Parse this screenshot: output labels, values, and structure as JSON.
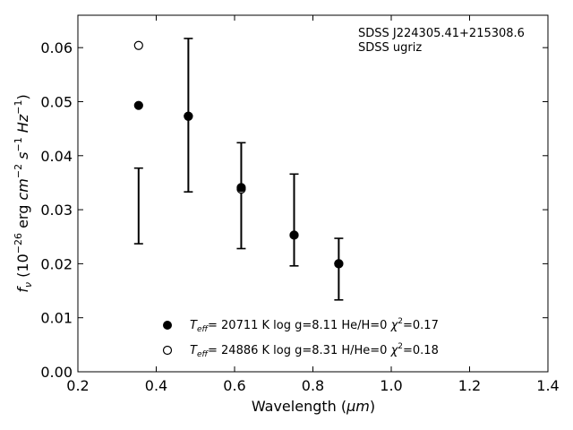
{
  "chart_data": {
    "type": "scatter",
    "xlabel_main": "Wavelength (",
    "xlabel_unit": "μm",
    "xlabel_end": ")",
    "ylabel_sym": "f",
    "ylabel_sub": "ν",
    "ylabel_pre": " (10",
    "ylabel_exp1": "−26",
    "ylabel_mid": " erg ",
    "ylabel_cm": "cm",
    "ylabel_exp2": "−2",
    "ylabel_s": " s",
    "ylabel_exp3": "−1",
    "ylabel_hz": " Hz",
    "ylabel_exp4": "−1",
    "ylabel_end": ")",
    "xlim": [
      0.2,
      1.4
    ],
    "ylim": [
      0.0,
      0.066
    ],
    "xticks": [
      "0.2",
      "0.4",
      "0.6",
      "0.8",
      "1.0",
      "1.2",
      "1.4"
    ],
    "yticks": [
      "0.00",
      "0.01",
      "0.02",
      "0.03",
      "0.04",
      "0.05",
      "0.06"
    ],
    "annotation": [
      "SDSS J224305.41+215308.6",
      "SDSS ugriz"
    ],
    "observed": {
      "x": [
        0.355,
        0.482,
        0.617,
        0.752,
        0.866
      ],
      "y": [
        0.0307,
        0.0475,
        0.0326,
        0.0281,
        0.019
      ],
      "err": [
        0.007,
        0.0142,
        0.0098,
        0.0085,
        0.0057
      ]
    },
    "series": [
      {
        "legend_T": "T",
        "legend_sub": "eff",
        "legend_text": "= 20711 K  log g=8.11  He/H=0  ",
        "legend_chi": "χ",
        "legend_chi_exp": "2",
        "legend_chi_val": "=0.17",
        "marker": "filled",
        "x": [
          0.355,
          0.482,
          0.617,
          0.752,
          0.866
        ],
        "y": [
          0.0493,
          0.0473,
          0.0341,
          0.0253,
          0.02
        ]
      },
      {
        "legend_T": "T",
        "legend_sub": "eff",
        "legend_text": "= 24886 K  log g=8.31  H/He=0  ",
        "legend_chi": "χ",
        "legend_chi_exp": "2",
        "legend_chi_val": "=0.18",
        "marker": "open",
        "x": [
          0.355,
          0.482,
          0.617,
          0.752,
          0.866
        ],
        "y": [
          0.0604,
          0.0473,
          0.0338,
          0.0253,
          0.02
        ]
      }
    ]
  }
}
